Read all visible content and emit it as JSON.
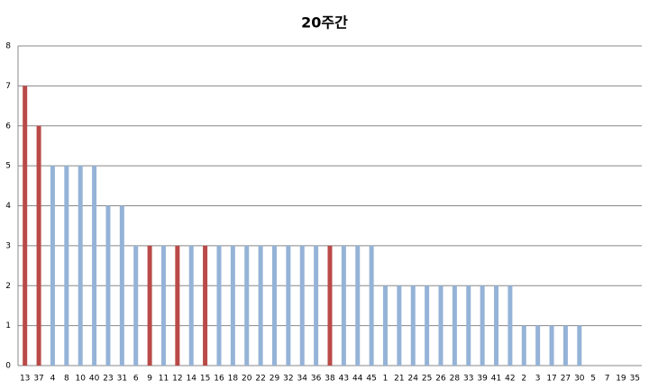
{
  "chart_data": {
    "type": "bar",
    "title": "20주간",
    "categories": [
      "13",
      "37",
      "4",
      "8",
      "10",
      "40",
      "23",
      "31",
      "6",
      "9",
      "11",
      "12",
      "14",
      "15",
      "16",
      "18",
      "20",
      "22",
      "29",
      "32",
      "34",
      "36",
      "38",
      "43",
      "44",
      "45",
      "1",
      "21",
      "24",
      "25",
      "26",
      "28",
      "33",
      "39",
      "41",
      "42",
      "2",
      "3",
      "17",
      "27",
      "30",
      "5",
      "7",
      "19",
      "35"
    ],
    "values": [
      7,
      6,
      5,
      5,
      5,
      5,
      4,
      4,
      3,
      3,
      3,
      3,
      3,
      3,
      3,
      3,
      3,
      3,
      3,
      3,
      3,
      3,
      3,
      3,
      3,
      3,
      2,
      2,
      2,
      2,
      2,
      2,
      2,
      2,
      2,
      2,
      1,
      1,
      1,
      1,
      1,
      0,
      0,
      0,
      0
    ],
    "colors": [
      "#b94a48",
      "#b94a48",
      "#95b3d7",
      "#95b3d7",
      "#95b3d7",
      "#95b3d7",
      "#95b3d7",
      "#95b3d7",
      "#95b3d7",
      "#b94a48",
      "#95b3d7",
      "#b94a48",
      "#95b3d7",
      "#b94a48",
      "#95b3d7",
      "#95b3d7",
      "#95b3d7",
      "#95b3d7",
      "#95b3d7",
      "#95b3d7",
      "#95b3d7",
      "#95b3d7",
      "#b94a48",
      "#95b3d7",
      "#95b3d7",
      "#95b3d7",
      "#95b3d7",
      "#95b3d7",
      "#95b3d7",
      "#95b3d7",
      "#95b3d7",
      "#95b3d7",
      "#95b3d7",
      "#95b3d7",
      "#95b3d7",
      "#95b3d7",
      "#95b3d7",
      "#95b3d7",
      "#95b3d7",
      "#95b3d7",
      "#95b3d7",
      "#95b3d7",
      "#95b3d7",
      "#95b3d7",
      "#95b3d7"
    ],
    "ylim": [
      0,
      8
    ],
    "yticks": [
      0,
      1,
      2,
      3,
      4,
      5,
      6,
      7,
      8
    ],
    "grid": true
  }
}
